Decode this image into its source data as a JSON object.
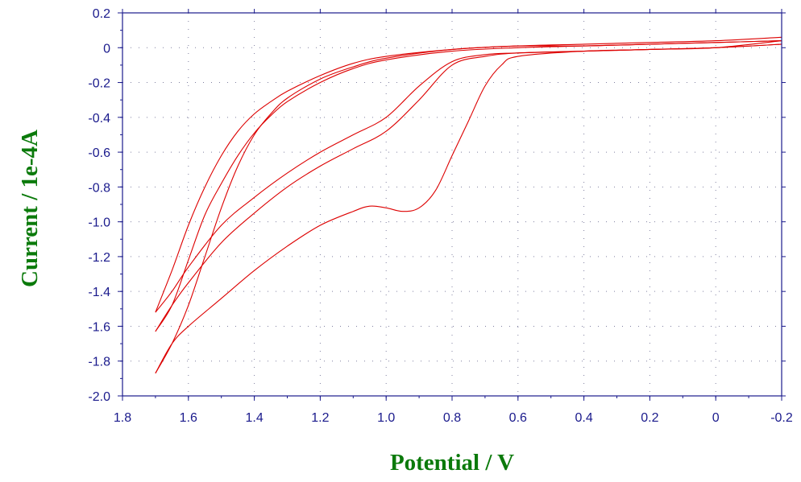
{
  "colors": {
    "curve": "#dd0000",
    "axis_title": "#0b7a0b",
    "tick_label": "#1a1a8c",
    "frame": "#1a1a8c",
    "grid": "#8080a0"
  },
  "chart_data": {
    "type": "line",
    "title": "",
    "xlabel": "Potential / V",
    "ylabel": "Current / 1e-4A",
    "xlim": [
      1.8,
      -0.2
    ],
    "ylim": [
      -2.0,
      0.2
    ],
    "x_reversed": true,
    "grid": true,
    "legend": "none",
    "xticks": [
      "1.8",
      "1.6",
      "1.4",
      "1.2",
      "1.0",
      "0.8",
      "0.6",
      "0.4",
      "0.2",
      "0",
      "-0.2"
    ],
    "yticks": [
      "0.2",
      "0",
      "-0.2",
      "-0.4",
      "-0.6",
      "-0.8",
      "-1.0",
      "-1.2",
      "-1.4",
      "-1.6",
      "-1.8",
      "-2.0"
    ],
    "series": [
      {
        "x": [
          -0.2,
          0.0,
          0.2,
          0.4,
          0.6,
          0.65,
          0.7,
          0.75,
          0.8,
          0.85,
          0.9,
          0.95,
          1.0,
          1.05,
          1.1,
          1.2,
          1.3,
          1.4,
          1.5,
          1.6,
          1.65,
          1.7
        ],
        "y": [
          0.04,
          0.0,
          -0.01,
          -0.02,
          -0.05,
          -0.1,
          -0.22,
          -0.42,
          -0.62,
          -0.82,
          -0.92,
          -0.94,
          -0.92,
          -0.91,
          -0.94,
          -1.02,
          -1.14,
          -1.28,
          -1.44,
          -1.6,
          -1.7,
          -1.87
        ]
      },
      {
        "x": [
          1.7,
          1.65,
          1.6,
          1.55,
          1.5,
          1.45,
          1.4,
          1.35,
          1.3,
          1.2,
          1.1,
          1.0,
          0.8,
          0.6,
          0.4,
          0.2,
          0.0,
          -0.2
        ],
        "y": [
          -1.87,
          -1.7,
          -1.48,
          -1.2,
          -0.92,
          -0.68,
          -0.5,
          -0.38,
          -0.29,
          -0.18,
          -0.11,
          -0.06,
          -0.01,
          0.01,
          0.02,
          0.03,
          0.04,
          0.06
        ]
      },
      {
        "x": [
          -0.2,
          0.0,
          0.2,
          0.4,
          0.6,
          0.7,
          0.8,
          0.9,
          1.0,
          1.1,
          1.2,
          1.3,
          1.4,
          1.5,
          1.6,
          1.65,
          1.7
        ],
        "y": [
          0.02,
          0.0,
          -0.01,
          -0.02,
          -0.03,
          -0.05,
          -0.1,
          -0.3,
          -0.48,
          -0.58,
          -0.68,
          -0.8,
          -0.95,
          -1.12,
          -1.35,
          -1.48,
          -1.63
        ]
      },
      {
        "x": [
          1.7,
          1.65,
          1.6,
          1.55,
          1.5,
          1.45,
          1.4,
          1.35,
          1.3,
          1.2,
          1.1,
          1.0,
          0.8,
          0.6,
          0.4,
          0.2,
          0.0,
          -0.2
        ],
        "y": [
          -1.63,
          -1.48,
          -1.22,
          -0.96,
          -0.78,
          -0.62,
          -0.49,
          -0.39,
          -0.31,
          -0.2,
          -0.12,
          -0.07,
          -0.02,
          0.0,
          0.01,
          0.02,
          0.03,
          0.04
        ]
      },
      {
        "x": [
          -0.2,
          0.0,
          0.2,
          0.4,
          0.6,
          0.7,
          0.8,
          0.9,
          1.0,
          1.1,
          1.2,
          1.3,
          1.4,
          1.5,
          1.6,
          1.65,
          1.7
        ],
        "y": [
          0.02,
          0.0,
          -0.01,
          -0.02,
          -0.03,
          -0.04,
          -0.08,
          -0.22,
          -0.4,
          -0.5,
          -0.6,
          -0.72,
          -0.86,
          -1.02,
          -1.26,
          -1.4,
          -1.52
        ]
      },
      {
        "x": [
          1.7,
          1.65,
          1.6,
          1.55,
          1.5,
          1.45,
          1.4,
          1.35,
          1.3,
          1.2,
          1.1,
          1.0,
          0.8,
          0.6,
          0.4,
          0.2,
          0.0,
          -0.2
        ],
        "y": [
          -1.52,
          -1.28,
          -1.02,
          -0.8,
          -0.62,
          -0.48,
          -0.38,
          -0.31,
          -0.25,
          -0.16,
          -0.09,
          -0.05,
          -0.01,
          0.01,
          0.01,
          0.02,
          0.03,
          0.04
        ]
      }
    ]
  }
}
